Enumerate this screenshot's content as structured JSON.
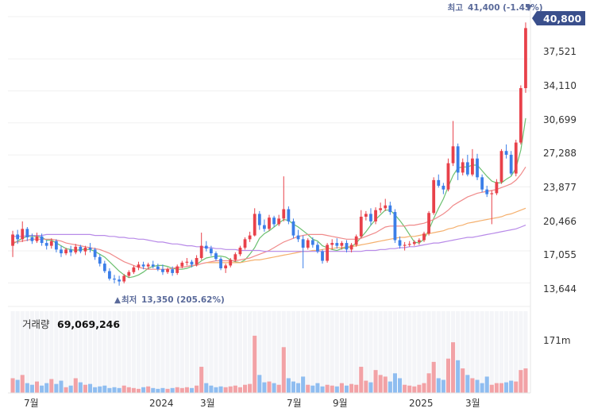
{
  "chart_data": {
    "type": "candlestick",
    "price_axis": {
      "ticks": [
        "37,521",
        "34,110",
        "30,699",
        "27,288",
        "23,877",
        "20,466",
        "17,055",
        "13,644"
      ],
      "ylim": [
        11900,
        42100
      ]
    },
    "current_price": "40,800",
    "high_annotation": {
      "prefix": "최고",
      "value": "41,400 (-1.45%)",
      "marker": "▼"
    },
    "low_annotation": {
      "prefix": "최저",
      "value": "13,350 (205.62%)",
      "marker": "▲"
    },
    "volume": {
      "label": "거래량",
      "latest": "69,069,246",
      "tick": "171m"
    },
    "x_ticks": [
      "7월",
      "2024",
      "3월",
      "7월",
      "9월",
      "2025",
      "3월"
    ],
    "candles": [
      [
        17.6,
        19.2,
        16.4,
        18.8
      ],
      [
        18.8,
        19.3,
        17.8,
        18.3
      ],
      [
        18.3,
        20.2,
        18.0,
        19.4
      ],
      [
        19.4,
        19.6,
        18.1,
        18.5
      ],
      [
        18.5,
        18.9,
        17.8,
        18.1
      ],
      [
        18.1,
        19.0,
        17.9,
        18.6
      ],
      [
        18.6,
        18.9,
        17.6,
        17.9
      ],
      [
        17.9,
        18.2,
        17.2,
        17.6
      ],
      [
        17.6,
        18.4,
        17.3,
        18.1
      ],
      [
        18.1,
        18.3,
        16.9,
        17.2
      ],
      [
        17.2,
        17.6,
        16.4,
        16.8
      ],
      [
        16.8,
        17.4,
        16.6,
        17.2
      ],
      [
        17.2,
        17.6,
        16.5,
        16.9
      ],
      [
        16.9,
        17.8,
        16.7,
        17.5
      ],
      [
        17.5,
        17.7,
        16.8,
        17.0
      ],
      [
        17.0,
        17.6,
        16.6,
        17.4
      ],
      [
        17.4,
        17.9,
        16.9,
        17.2
      ],
      [
        17.2,
        17.4,
        16.1,
        16.4
      ],
      [
        16.4,
        16.7,
        15.4,
        15.7
      ],
      [
        15.7,
        16.0,
        14.7,
        14.9
      ],
      [
        14.9,
        15.2,
        13.9,
        14.1
      ],
      [
        14.1,
        14.5,
        13.6,
        14.0
      ],
      [
        14.0,
        14.4,
        13.35,
        13.8
      ],
      [
        13.8,
        14.6,
        13.6,
        14.4
      ],
      [
        14.4,
        15.0,
        14.2,
        14.8
      ],
      [
        14.8,
        15.5,
        14.6,
        15.3
      ],
      [
        15.3,
        15.9,
        15.0,
        15.6
      ],
      [
        15.6,
        15.9,
        15.1,
        15.4
      ],
      [
        15.4,
        15.8,
        15.1,
        15.6
      ],
      [
        15.6,
        16.0,
        15.2,
        15.4
      ],
      [
        15.4,
        15.7,
        14.9,
        15.1
      ],
      [
        15.1,
        15.6,
        14.5,
        14.8
      ],
      [
        14.8,
        15.3,
        14.6,
        15.1
      ],
      [
        15.1,
        15.4,
        14.4,
        14.7
      ],
      [
        14.7,
        15.6,
        14.5,
        15.4
      ],
      [
        15.4,
        16.0,
        15.2,
        15.8
      ],
      [
        15.8,
        16.3,
        15.5,
        15.9
      ],
      [
        15.9,
        16.1,
        15.3,
        15.6
      ],
      [
        15.6,
        16.6,
        15.4,
        16.3
      ],
      [
        16.3,
        19.0,
        16.1,
        17.6
      ],
      [
        17.6,
        18.1,
        17.0,
        17.3
      ],
      [
        17.3,
        17.6,
        16.5,
        16.8
      ],
      [
        16.8,
        17.0,
        16.0,
        16.2
      ],
      [
        16.2,
        16.4,
        15.0,
        15.2
      ],
      [
        15.2,
        15.7,
        14.7,
        15.5
      ],
      [
        15.5,
        16.3,
        15.3,
        16.1
      ],
      [
        16.1,
        16.9,
        15.9,
        16.7
      ],
      [
        16.7,
        17.6,
        16.5,
        17.4
      ],
      [
        17.4,
        18.5,
        17.2,
        18.3
      ],
      [
        18.3,
        19.1,
        18.0,
        18.7
      ],
      [
        18.7,
        21.6,
        18.6,
        21.0
      ],
      [
        21.0,
        21.3,
        19.3,
        19.8
      ],
      [
        19.8,
        20.4,
        19.1,
        19.4
      ],
      [
        19.4,
        20.9,
        19.2,
        20.6
      ],
      [
        20.6,
        20.8,
        19.6,
        19.9
      ],
      [
        19.9,
        20.9,
        19.7,
        20.5
      ],
      [
        20.5,
        25.0,
        20.2,
        21.5
      ],
      [
        21.5,
        21.8,
        19.9,
        20.2
      ],
      [
        20.2,
        20.5,
        18.4,
        18.7
      ],
      [
        18.7,
        19.3,
        18.0,
        18.3
      ],
      [
        18.3,
        18.7,
        15.2,
        17.4
      ],
      [
        17.4,
        18.4,
        17.2,
        18.2
      ],
      [
        18.2,
        18.5,
        17.4,
        17.7
      ],
      [
        17.7,
        18.0,
        16.8,
        17.0
      ],
      [
        17.0,
        17.2,
        15.7,
        16.0
      ],
      [
        16.0,
        17.9,
        15.8,
        17.7
      ],
      [
        17.7,
        18.3,
        17.2,
        17.9
      ],
      [
        17.9,
        18.4,
        17.3,
        17.6
      ],
      [
        17.6,
        18.1,
        17.2,
        17.9
      ],
      [
        17.9,
        18.2,
        16.9,
        17.2
      ],
      [
        17.2,
        17.9,
        16.9,
        17.7
      ],
      [
        17.7,
        18.8,
        17.5,
        18.6
      ],
      [
        18.6,
        21.4,
        18.4,
        20.7
      ],
      [
        20.7,
        21.3,
        20.3,
        21.0
      ],
      [
        21.0,
        21.6,
        19.8,
        20.2
      ],
      [
        20.2,
        21.7,
        19.9,
        21.4
      ],
      [
        21.4,
        22.2,
        21.1,
        21.6
      ],
      [
        21.6,
        22.6,
        21.3,
        21.9
      ],
      [
        21.9,
        22.3,
        20.9,
        21.2
      ],
      [
        21.2,
        21.5,
        17.9,
        18.2
      ],
      [
        18.2,
        18.6,
        17.3,
        17.6
      ],
      [
        17.6,
        18.0,
        17.1,
        17.7
      ],
      [
        17.7,
        18.1,
        17.5,
        17.8
      ],
      [
        17.8,
        18.2,
        17.6,
        18.0
      ],
      [
        18.0,
        18.4,
        17.7,
        18.2
      ],
      [
        18.2,
        19.1,
        18.0,
        18.9
      ],
      [
        18.9,
        21.3,
        18.7,
        21.1
      ],
      [
        21.1,
        24.9,
        20.9,
        24.6
      ],
      [
        24.6,
        25.2,
        23.8,
        24.0
      ],
      [
        24.0,
        24.3,
        23.1,
        23.6
      ],
      [
        23.6,
        26.9,
        23.4,
        26.4
      ],
      [
        26.4,
        30.9,
        26.1,
        28.2
      ],
      [
        28.2,
        28.5,
        24.6,
        25.4
      ],
      [
        25.4,
        26.9,
        25.1,
        26.5
      ],
      [
        26.5,
        27.3,
        25.0,
        25.2
      ],
      [
        25.2,
        27.9,
        25.0,
        26.9
      ],
      [
        26.9,
        27.4,
        24.6,
        24.9
      ],
      [
        24.9,
        25.2,
        23.3,
        23.6
      ],
      [
        23.6,
        24.0,
        22.8,
        23.1
      ],
      [
        23.1,
        23.5,
        19.9,
        23.2
      ],
      [
        23.2,
        24.7,
        23.0,
        24.4
      ],
      [
        24.4,
        27.9,
        24.2,
        27.7
      ],
      [
        27.7,
        28.4,
        26.9,
        27.3
      ],
      [
        27.3,
        27.7,
        25.1,
        25.3
      ],
      [
        25.3,
        28.9,
        25.0,
        28.6
      ],
      [
        28.6,
        34.7,
        28.4,
        34.4
      ],
      [
        34.4,
        41.4,
        33.9,
        40.8
      ]
    ],
    "volumes": [
      0.18,
      0.16,
      0.22,
      0.12,
      0.1,
      0.14,
      0.09,
      0.12,
      0.17,
      0.11,
      0.15,
      0.07,
      0.09,
      0.18,
      0.13,
      0.1,
      0.11,
      0.07,
      0.08,
      0.09,
      0.06,
      0.07,
      0.06,
      0.09,
      0.07,
      0.06,
      0.05,
      0.07,
      0.08,
      0.06,
      0.05,
      0.06,
      0.05,
      0.06,
      0.07,
      0.06,
      0.07,
      0.06,
      0.09,
      0.32,
      0.12,
      0.09,
      0.07,
      0.08,
      0.07,
      0.08,
      0.09,
      0.07,
      0.1,
      0.11,
      0.7,
      0.22,
      0.13,
      0.14,
      0.12,
      0.1,
      0.56,
      0.18,
      0.14,
      0.12,
      0.2,
      0.1,
      0.09,
      0.12,
      0.08,
      0.1,
      0.09,
      0.08,
      0.12,
      0.09,
      0.11,
      0.1,
      0.32,
      0.15,
      0.13,
      0.28,
      0.22,
      0.2,
      0.14,
      0.24,
      0.18,
      0.1,
      0.09,
      0.08,
      0.1,
      0.12,
      0.24,
      0.38,
      0.18,
      0.16,
      0.42,
      0.62,
      0.4,
      0.3,
      0.22,
      0.18,
      0.16,
      0.12,
      0.2,
      0.1,
      0.12,
      0.12,
      0.13,
      0.15,
      0.14,
      0.28,
      0.3
    ],
    "ma": [
      {
        "values": [
          17.8,
          18.1,
          18.4,
          18.6,
          18.6,
          18.6,
          18.5,
          18.2,
          18.2,
          17.9,
          17.6,
          17.3,
          17.2,
          17.1,
          17.2,
          17.2,
          17.2,
          17.0,
          16.7,
          16.4,
          15.9,
          15.4,
          14.9,
          14.5,
          14.2,
          14.3,
          14.5,
          14.8,
          15.2,
          15.4,
          15.5,
          15.5,
          15.4,
          15.2,
          15.1,
          15.1,
          15.2,
          15.4,
          15.6,
          16.0,
          16.3,
          16.4,
          16.5,
          16.5,
          16.4,
          16.1,
          15.9,
          15.8,
          16.1,
          16.7,
          17.4,
          18.4,
          18.9,
          19.2,
          19.6,
          20.0,
          20.4,
          20.3,
          19.9,
          19.6,
          19.2,
          18.8,
          18.3,
          18.1,
          17.6,
          17.4,
          17.2,
          17.1,
          17.3,
          17.4,
          17.5,
          17.9,
          18.5,
          19.1,
          19.8,
          20.4,
          20.9,
          21.4,
          21.4,
          20.9,
          20.3,
          19.6,
          18.8,
          18.0,
          17.9,
          18.3,
          19.3,
          20.5,
          21.6,
          22.6,
          23.9,
          25.1,
          25.9,
          26.0,
          26.0,
          26.2,
          26.2,
          25.6,
          25.0,
          24.5,
          24.3,
          24.3,
          24.7,
          25.0,
          25.9,
          27.8,
          31.2
        ]
      },
      {
        "values": [
          18.0,
          18.0,
          18.1,
          18.2,
          18.3,
          18.3,
          18.3,
          18.3,
          18.3,
          18.2,
          18.1,
          17.9,
          17.8,
          17.7,
          17.6,
          17.5,
          17.4,
          17.3,
          17.2,
          17.0,
          16.8,
          16.5,
          16.2,
          15.9,
          15.7,
          15.5,
          15.3,
          15.2,
          15.1,
          15.1,
          15.1,
          15.1,
          15.1,
          15.2,
          15.3,
          15.3,
          15.4,
          15.5,
          15.5,
          15.7,
          15.8,
          15.9,
          16.0,
          16.0,
          16.0,
          16.0,
          16.0,
          16.1,
          16.2,
          16.3,
          16.5,
          16.7,
          16.9,
          17.1,
          17.4,
          17.7,
          18.0,
          18.2,
          18.4,
          18.6,
          18.7,
          18.8,
          18.8,
          18.8,
          18.8,
          18.7,
          18.6,
          18.5,
          18.4,
          18.3,
          18.3,
          18.3,
          18.4,
          18.6,
          18.8,
          19.0,
          19.3,
          19.6,
          19.7,
          19.7,
          19.7,
          19.7,
          19.8,
          19.8,
          19.9,
          20.0,
          20.2,
          20.4,
          20.7,
          21.0,
          21.4,
          21.9,
          22.2,
          22.5,
          22.8,
          23.0,
          23.2,
          23.3,
          23.4,
          23.5,
          23.6,
          23.8,
          24.0,
          24.2,
          24.6,
          25.2,
          26.0
        ]
      },
      {
        "values": [
          null,
          null,
          null,
          null,
          null,
          null,
          null,
          null,
          null,
          null,
          null,
          null,
          null,
          null,
          null,
          null,
          null,
          null,
          null,
          null,
          null,
          null,
          null,
          null,
          null,
          null,
          null,
          null,
          null,
          null,
          null,
          null,
          null,
          null,
          null,
          null,
          null,
          null,
          null,
          null,
          15.8,
          15.8,
          15.8,
          15.8,
          15.8,
          15.8,
          15.8,
          15.8,
          15.9,
          16.0,
          16.1,
          16.1,
          16.2,
          16.3,
          16.4,
          16.5,
          16.6,
          16.7,
          16.8,
          16.9,
          17.0,
          17.0,
          17.1,
          17.1,
          17.2,
          17.3,
          17.3,
          17.4,
          17.4,
          17.5,
          17.5,
          17.6,
          17.7,
          17.8,
          17.9,
          18.0,
          18.1,
          18.2,
          18.3,
          18.4,
          18.5,
          18.5,
          18.6,
          18.6,
          18.7,
          18.8,
          18.9,
          19.0,
          19.1,
          19.2,
          19.4,
          19.5,
          19.7,
          19.8,
          20.0,
          20.1,
          20.2,
          20.3,
          20.4,
          20.5,
          20.6,
          20.7,
          20.9,
          21.0,
          21.2,
          21.4,
          21.6
        ]
      },
      {
        "values": [
          18.6,
          18.6,
          18.6,
          18.7,
          18.7,
          18.7,
          18.7,
          18.8,
          18.8,
          18.8,
          18.8,
          18.8,
          18.8,
          18.8,
          18.8,
          18.8,
          18.8,
          18.7,
          18.7,
          18.7,
          18.6,
          18.6,
          18.5,
          18.5,
          18.4,
          18.4,
          18.3,
          18.3,
          18.2,
          18.1,
          18.0,
          18.0,
          17.9,
          17.8,
          17.8,
          17.7,
          17.6,
          17.6,
          17.5,
          17.5,
          17.4,
          17.4,
          17.3,
          17.3,
          17.2,
          17.2,
          17.2,
          17.1,
          17.1,
          17.1,
          17.1,
          17.1,
          17.0,
          17.0,
          17.0,
          17.0,
          17.0,
          17.0,
          17.0,
          17.0,
          17.0,
          17.0,
          17.0,
          17.0,
          17.0,
          17.0,
          17.0,
          17.0,
          17.0,
          17.0,
          17.0,
          17.0,
          17.0,
          17.1,
          17.1,
          17.1,
          17.2,
          17.2,
          17.3,
          17.3,
          17.4,
          17.4,
          17.5,
          17.5,
          17.6,
          17.7,
          17.8,
          17.9,
          17.9,
          18.0,
          18.1,
          18.2,
          18.3,
          18.4,
          18.5,
          18.5,
          18.6,
          18.7,
          18.8,
          18.9,
          19.0,
          19.1,
          19.2,
          19.3,
          19.4,
          19.6,
          19.8
        ]
      }
    ],
    "ma_colors": [
      "#6cc070",
      "#f08a8a",
      "#f5b06e",
      "#b88ae8"
    ],
    "up_color": "#e8414a",
    "down_color": "#3b7ee8",
    "vol_up_color": "#f2a2a6",
    "vol_down_color": "#8fbdf0",
    "label_bg_color": "#3a4f8c"
  }
}
